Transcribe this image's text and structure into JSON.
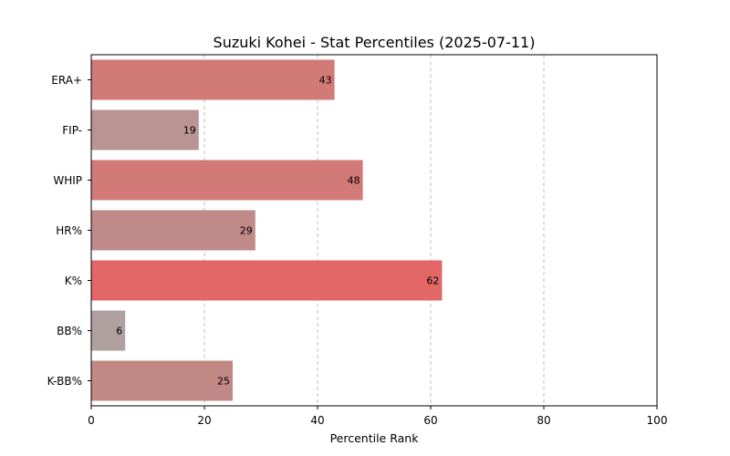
{
  "chart_data": {
    "type": "bar",
    "orientation": "horizontal",
    "title": "Suzuki Kohei - Stat Percentiles (2025-07-11)",
    "xlabel": "Percentile Rank",
    "ylabel": "",
    "xlim": [
      0,
      100
    ],
    "xticks": [
      0,
      20,
      40,
      60,
      80,
      100
    ],
    "grid": "x-dashed",
    "categories": [
      "ERA+",
      "FIP-",
      "WHIP",
      "HR%",
      "K%",
      "BB%",
      "K-BB%"
    ],
    "values": [
      43,
      19,
      48,
      29,
      62,
      6,
      25
    ],
    "colors": [
      "#d27a78",
      "#b89592",
      "#d27a78",
      "#bf8a88",
      "#e36767",
      "#b0a0a0",
      "#c28886"
    ]
  }
}
